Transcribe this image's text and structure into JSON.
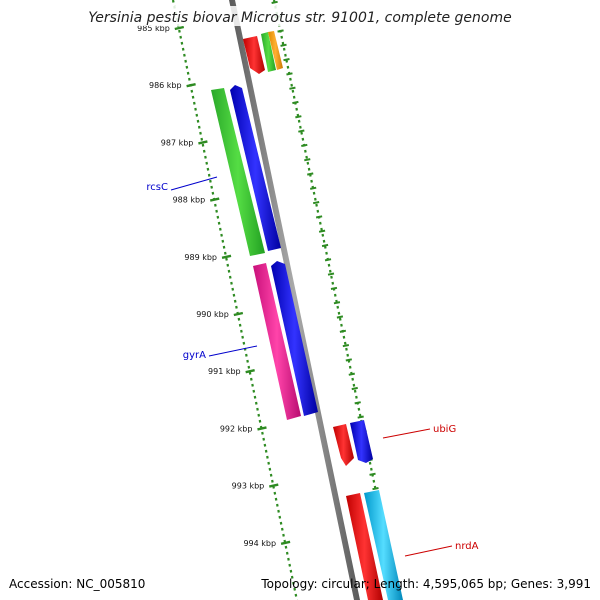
{
  "title": "Yersinia pestis biovar Microtus str. 91001, complete genome",
  "footer": {
    "accession": "Accession: NC_005810",
    "topology": "Topology: circular; Length: 4,595,065 bp; Genes: 3,991"
  },
  "ticks": [
    "985 kbp",
    "986 kbp",
    "987 kbp",
    "988 kbp",
    "989 kbp",
    "990 kbp",
    "991 kbp",
    "992 kbp",
    "993 kbp",
    "994 kbp"
  ],
  "gene_labels": [
    {
      "name": "rcsC",
      "strand": "forward"
    },
    {
      "name": "gyrA",
      "strand": "forward"
    },
    {
      "name": "ubiG",
      "strand": "reverse"
    },
    {
      "name": "nrdA",
      "strand": "reverse"
    }
  ],
  "colors": {
    "backbone": "#808080",
    "tick": "#2e8b22",
    "forward_label": "#0000cc",
    "reverse_label": "#cc0000",
    "green": "#33cc33",
    "blue": "#1a1aee",
    "red": "#ee1111",
    "orange": "#ff9900",
    "pink": "#ee2299",
    "cyan": "#11bbee"
  }
}
